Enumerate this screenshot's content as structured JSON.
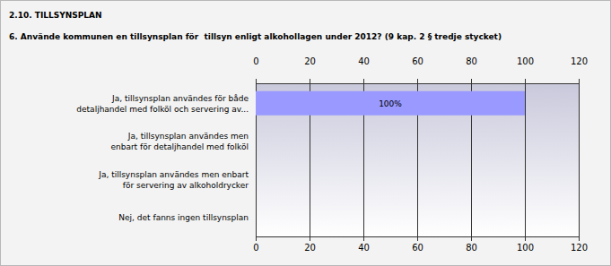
{
  "chart_data": {
    "type": "bar",
    "orientation": "horizontal",
    "subtitle": "2.10. TILLSYNSPLAN",
    "title": "6. Använde kommunen en tillsynsplan för  tillsyn enligt alkohollagen under 2012? (9 kap. 2 § tredje stycket)",
    "categories": [
      "Ja, tillsynsplan användes för både\ndetaljhandel med folköl och servering av...",
      "Ja, tillsynsplan användes men\nenbart för detaljhandel med folköl",
      "Ja, tillsynsplan användes men enbart\nför servering av alkoholdrycker",
      "Nej, det fanns ingen tillsynsplan"
    ],
    "values": [
      100,
      0,
      0,
      0
    ],
    "value_labels": [
      "100%",
      null,
      null,
      null
    ],
    "data_labels": true,
    "color": "#9999ff",
    "xlim": [
      0,
      120
    ],
    "xticks": [
      0,
      20,
      40,
      60,
      80,
      100,
      120
    ],
    "grid": true
  }
}
